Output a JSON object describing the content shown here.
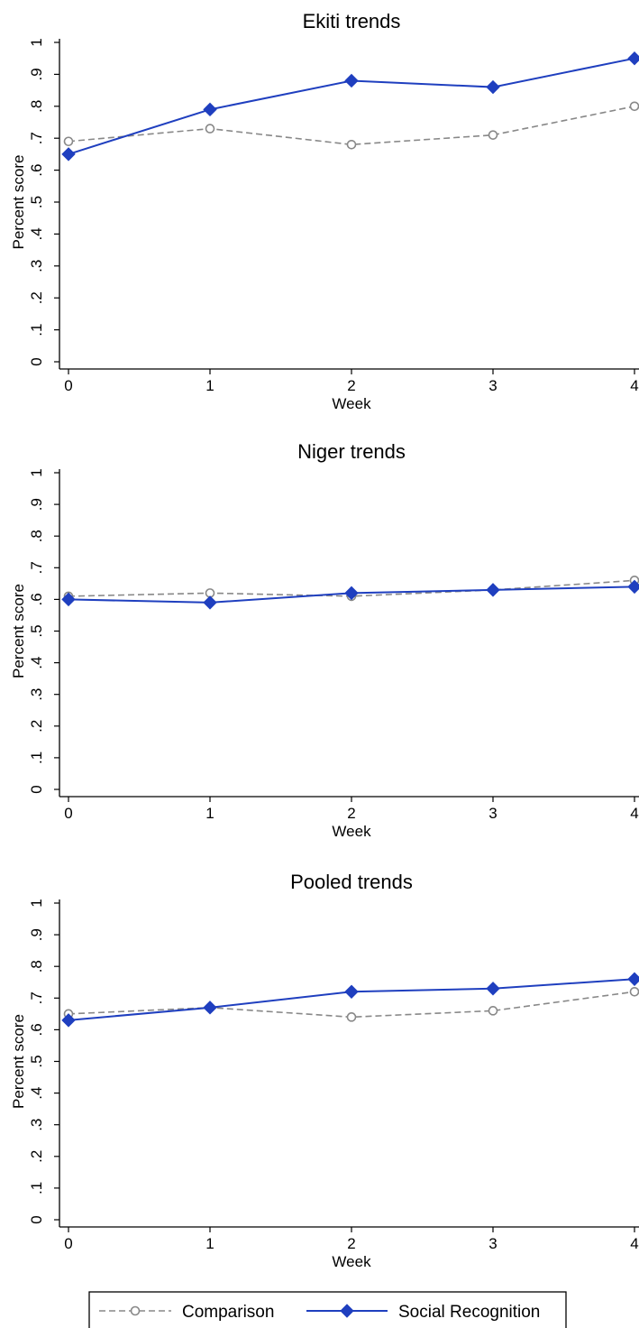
{
  "chart_data": [
    {
      "type": "line",
      "title": "Ekiti trends",
      "xlabel": "Week",
      "ylabel": "Percent score",
      "x": [
        0,
        1,
        2,
        3,
        4
      ],
      "xticks": [
        "0",
        "1",
        "2",
        "3",
        "4"
      ],
      "yticks": [
        "0",
        ".1",
        ".2",
        ".3",
        ".4",
        ".5",
        ".6",
        ".7",
        ".8",
        ".9",
        "1"
      ],
      "ylim": [
        0,
        1
      ],
      "series": [
        {
          "name": "Comparison",
          "values": [
            0.69,
            0.73,
            0.68,
            0.71,
            0.8
          ],
          "color": "#888888",
          "style": "dashed",
          "marker": "hollow-circle"
        },
        {
          "name": "Social Recognition",
          "values": [
            0.65,
            0.79,
            0.88,
            0.86,
            0.95
          ],
          "color": "#1f3fbf",
          "style": "solid",
          "marker": "diamond"
        }
      ]
    },
    {
      "type": "line",
      "title": "Niger trends",
      "xlabel": "Week",
      "ylabel": "Percent score",
      "x": [
        0,
        1,
        2,
        3,
        4
      ],
      "xticks": [
        "0",
        "1",
        "2",
        "3",
        "4"
      ],
      "yticks": [
        "0",
        ".1",
        ".2",
        ".3",
        ".4",
        ".5",
        ".6",
        ".7",
        ".8",
        ".9",
        "1"
      ],
      "ylim": [
        0,
        1
      ],
      "series": [
        {
          "name": "Comparison",
          "values": [
            0.61,
            0.62,
            0.61,
            0.63,
            0.66
          ],
          "color": "#888888",
          "style": "dashed",
          "marker": "hollow-circle"
        },
        {
          "name": "Social Recognition",
          "values": [
            0.6,
            0.59,
            0.62,
            0.63,
            0.64
          ],
          "color": "#1f3fbf",
          "style": "solid",
          "marker": "diamond"
        }
      ]
    },
    {
      "type": "line",
      "title": "Pooled trends",
      "xlabel": "Week",
      "ylabel": "Percent score",
      "x": [
        0,
        1,
        2,
        3,
        4
      ],
      "xticks": [
        "0",
        "1",
        "2",
        "3",
        "4"
      ],
      "yticks": [
        "0",
        ".1",
        ".2",
        ".3",
        ".4",
        ".5",
        ".6",
        ".7",
        ".8",
        ".9",
        "1"
      ],
      "ylim": [
        0,
        1
      ],
      "series": [
        {
          "name": "Comparison",
          "values": [
            0.65,
            0.67,
            0.64,
            0.66,
            0.72
          ],
          "color": "#888888",
          "style": "dashed",
          "marker": "hollow-circle"
        },
        {
          "name": "Social Recognition",
          "values": [
            0.63,
            0.67,
            0.72,
            0.73,
            0.76
          ],
          "color": "#1f3fbf",
          "style": "solid",
          "marker": "diamond"
        }
      ]
    }
  ],
  "legend": {
    "placement": "bottom",
    "items": [
      "Comparison",
      "Social Recognition"
    ]
  }
}
